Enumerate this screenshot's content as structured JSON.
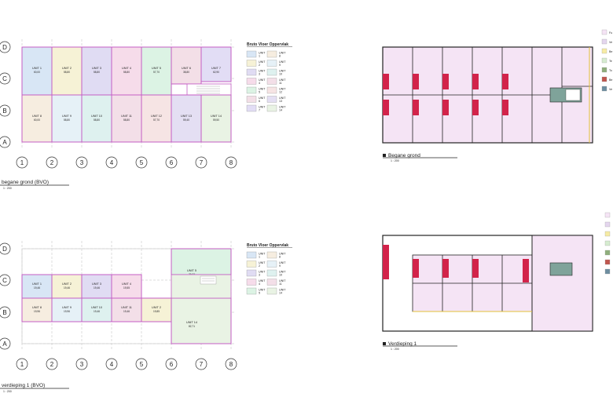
{
  "axes": {
    "rows": [
      "D",
      "C",
      "B",
      "A"
    ],
    "cols": [
      "1",
      "2",
      "3",
      "4",
      "5",
      "6",
      "7",
      "8"
    ]
  },
  "colors": {
    "line": "#c45ec4",
    "u1": "#d8e6f5",
    "u2": "#f6f2d6",
    "u3": "#e0dcf3",
    "u4": "#f6dcea",
    "u5": "#dcf3e4",
    "u6": "#f3dfe7",
    "u7": "#e2ddf5",
    "u8": "#f6ede0",
    "u9": "#e6f1f7",
    "u10": "#def1ef",
    "u11": "#f3dfe8",
    "u12": "#f6e4e4",
    "u13": "#e4dff3",
    "u14": "#e9f3e4",
    "plan_fill": "#f5e4f5",
    "stair": "#7fa39a",
    "red": "#d2234a"
  },
  "plan1": {
    "title": "begane grond (BVO)",
    "scale": "1 : 200",
    "units_top": [
      {
        "name": "UNIT 1",
        "area": "60,00"
      },
      {
        "name": "UNIT 2",
        "area": "58,80"
      },
      {
        "name": "UNIT 3",
        "area": "58,80"
      },
      {
        "name": "UNIT 4",
        "area": "58,80"
      },
      {
        "name": "UNIT 5",
        "area": "57,70"
      },
      {
        "name": "UNIT 6",
        "area": "38,80"
      },
      {
        "name": "UNIT 7",
        "area": "62,90"
      }
    ],
    "units_bottom": [
      {
        "name": "UNIT 8",
        "area": "60,00"
      },
      {
        "name": "UNIT 9",
        "area": "58,80"
      },
      {
        "name": "UNIT 10",
        "area": "58,80"
      },
      {
        "name": "UNIT 11",
        "area": "58,80"
      },
      {
        "name": "UNIT 12",
        "area": "57,70"
      },
      {
        "name": "UNIT 13",
        "area": "59,40"
      },
      {
        "name": "UNIT 14",
        "area": "59,50"
      }
    ]
  },
  "plan2": {
    "title": "verdieping 1 (BVO)",
    "scale": "1 : 200",
    "units_top": [
      {
        "name": "UNIT 1",
        "area": "19,46"
      },
      {
        "name": "UNIT 2",
        "area": "19,46"
      },
      {
        "name": "UNIT 3",
        "area": "19,46"
      },
      {
        "name": "UNIT 4",
        "area": "19,55"
      }
    ],
    "units_bottom": [
      {
        "name": "UNIT 8",
        "area": "19,96"
      },
      {
        "name": "UNIT 9",
        "area": "19,96"
      },
      {
        "name": "UNIT 10",
        "area": "19,46"
      },
      {
        "name": "UNIT 11",
        "area": "19,46"
      },
      {
        "name": "UNIT 2",
        "area": "19,85"
      }
    ],
    "unit_big_top": {
      "name": "UNIT 5",
      "area": "79,33"
    },
    "unit_big_bottom": {
      "name": "UNIT 14",
      "area": "82,71"
    }
  },
  "legend": {
    "title": "Bruto Vloer Oppervlak",
    "left": [
      {
        "line1": "UNIT",
        "line2": "1"
      },
      {
        "line1": "UNIT",
        "line2": "2"
      },
      {
        "line1": "UNIT",
        "line2": "3"
      },
      {
        "line1": "UNIT",
        "line2": "4"
      },
      {
        "line1": "UNIT",
        "line2": "5"
      },
      {
        "line1": "UNIT",
        "line2": "6"
      },
      {
        "line1": "UNIT",
        "line2": "7"
      }
    ],
    "right": [
      {
        "line1": "UNIT",
        "line2": "8"
      },
      {
        "line1": "UNIT",
        "line2": "9"
      },
      {
        "line1": "UNIT",
        "line2": "10"
      },
      {
        "line1": "UNIT",
        "line2": "11"
      },
      {
        "line1": "UNIT",
        "line2": "12"
      },
      {
        "line1": "UNIT",
        "line2": "13"
      },
      {
        "line1": "UNIT",
        "line2": "14"
      }
    ],
    "left2": [
      {
        "line1": "UNIT",
        "line2": "1"
      },
      {
        "line1": "UNIT",
        "line2": "2"
      },
      {
        "line1": "UNIT",
        "line2": "3"
      },
      {
        "line1": "UNIT",
        "line2": "4"
      },
      {
        "line1": "UNIT",
        "line2": "5"
      }
    ],
    "right2": [
      {
        "line1": "UNIT",
        "line2": "8"
      },
      {
        "line1": "UNIT",
        "line2": "9"
      },
      {
        "line1": "UNIT",
        "line2": "10"
      },
      {
        "line1": "UNIT",
        "line2": "11"
      },
      {
        "line1": "UNIT",
        "line2": "14"
      }
    ]
  },
  "right_plans": {
    "ground_title": "Begane grond",
    "ground_scale": "1 : 200",
    "upper_title": "Verdieping 1",
    "upper_scale": "1 : 200",
    "legend_top": [
      "Fu",
      "Ve",
      "Be",
      "Te",
      "To",
      "Be",
      "Ve"
    ]
  }
}
